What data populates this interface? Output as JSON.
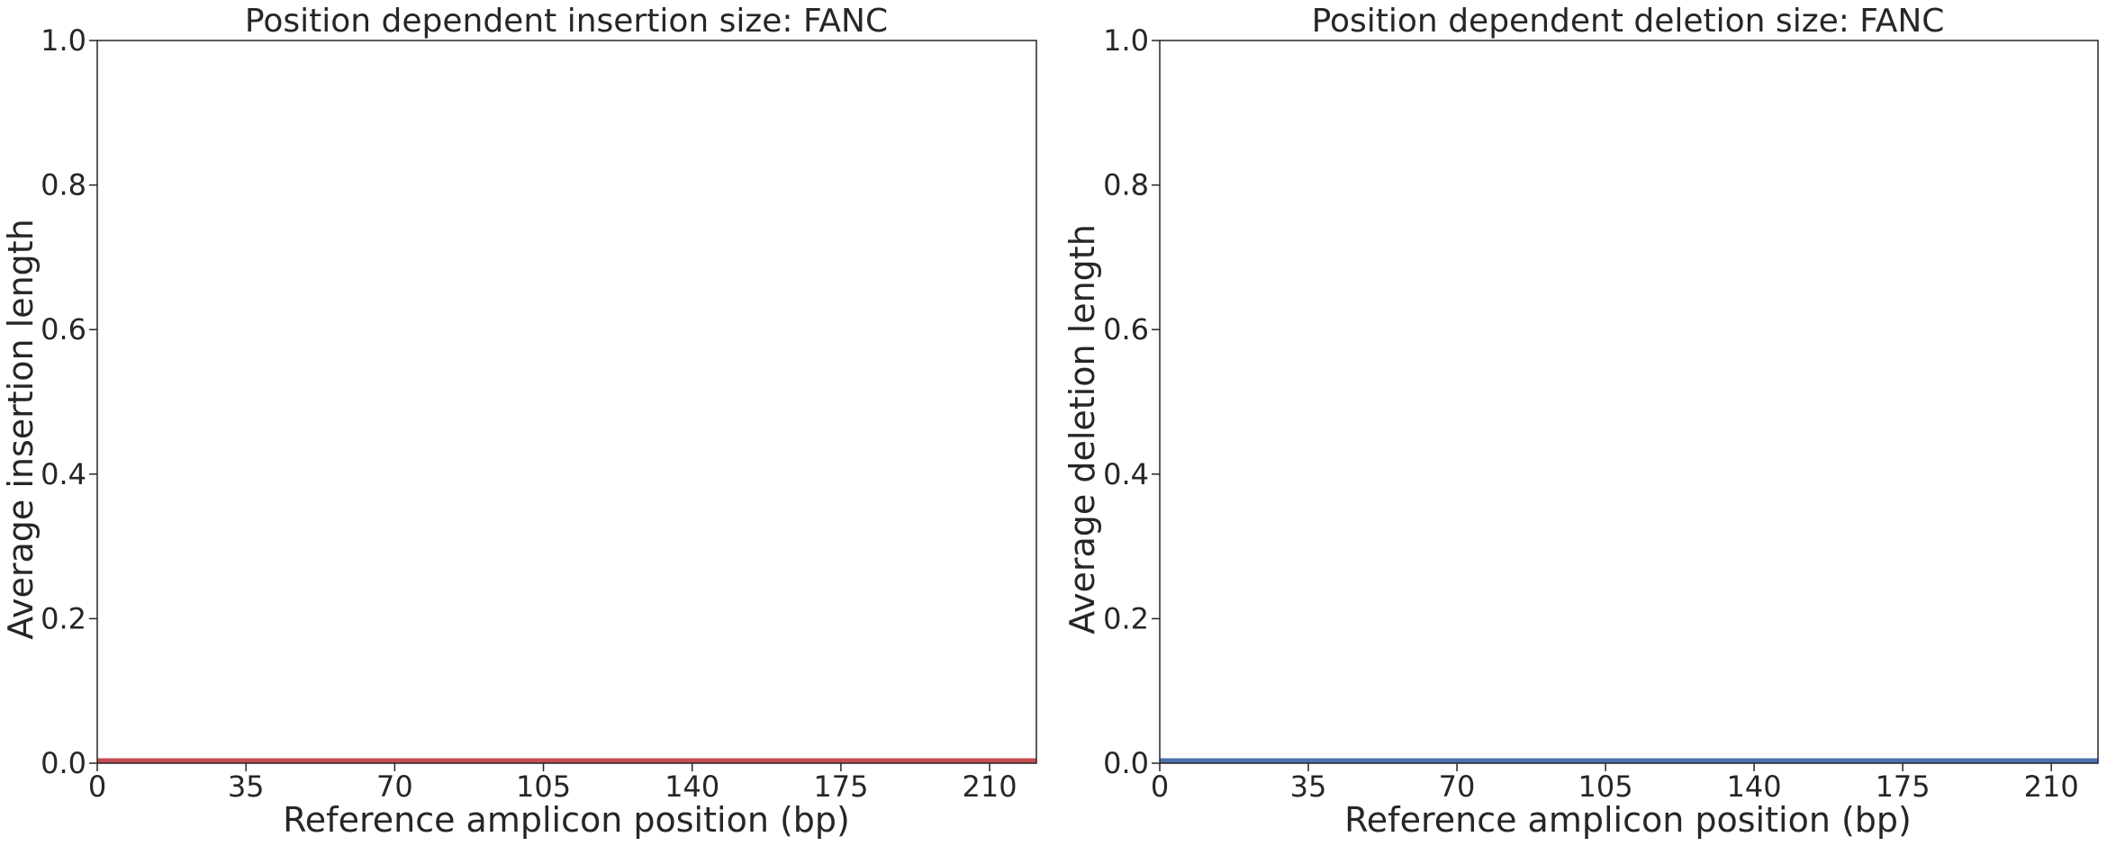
{
  "chart_data": [
    {
      "type": "line",
      "title": "Position dependent insertion size: FANC",
      "xlabel": "Reference amplicon position (bp)",
      "ylabel": "Average insertion length",
      "xlim": [
        0,
        221
      ],
      "ylim": [
        0,
        1.0
      ],
      "xticks": [
        0,
        35,
        70,
        105,
        140,
        175,
        210
      ],
      "yticks": [
        "0.0",
        "0.2",
        "0.4",
        "0.6",
        "0.8",
        "1.0"
      ],
      "grid": false,
      "series": [
        {
          "color": "#c44e52",
          "x": [
            0,
            221
          ],
          "y": [
            0.0,
            0.0
          ]
        }
      ]
    },
    {
      "type": "line",
      "title": "Position dependent deletion size: FANC",
      "xlabel": "Reference amplicon position (bp)",
      "ylabel": "Average deletion length",
      "xlim": [
        0,
        221
      ],
      "ylim": [
        0,
        1.0
      ],
      "xticks": [
        0,
        35,
        70,
        105,
        140,
        175,
        210
      ],
      "yticks": [
        "0.0",
        "0.2",
        "0.4",
        "0.6",
        "0.8",
        "1.0"
      ],
      "grid": false,
      "series": [
        {
          "color": "#4c72b0",
          "x": [
            0,
            221
          ],
          "y": [
            0.0,
            0.0
          ]
        }
      ]
    }
  ]
}
